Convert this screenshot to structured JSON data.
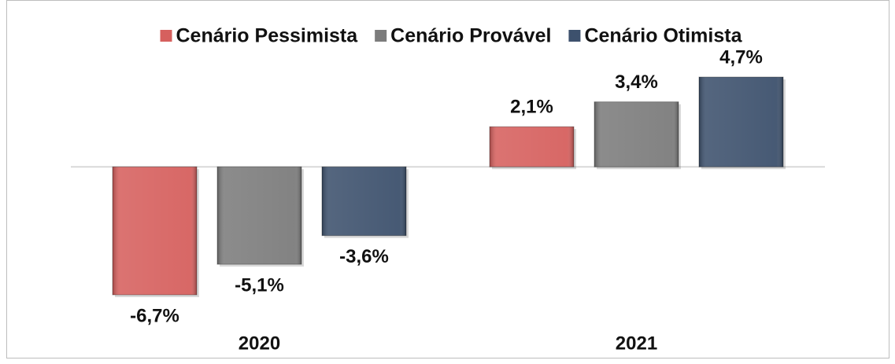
{
  "chart_data": {
    "type": "bar",
    "categories": [
      "2020",
      "2021"
    ],
    "series": [
      {
        "name": "Cenário Pessimista",
        "color": "#d6605e",
        "values": [
          -6.7,
          2.1
        ],
        "value_labels": [
          "-6,7%",
          "2,1%"
        ]
      },
      {
        "name": "Cenário Provável",
        "color": "#7c7c7c",
        "values": [
          -5.1,
          3.4
        ],
        "value_labels": [
          "-5,1%",
          "3,4%"
        ]
      },
      {
        "name": "Cenário Otimista",
        "color": "#3d516d",
        "values": [
          -3.6,
          4.7
        ],
        "value_labels": [
          "-3,6%",
          "4,7%"
        ]
      }
    ],
    "legend": "top"
  }
}
